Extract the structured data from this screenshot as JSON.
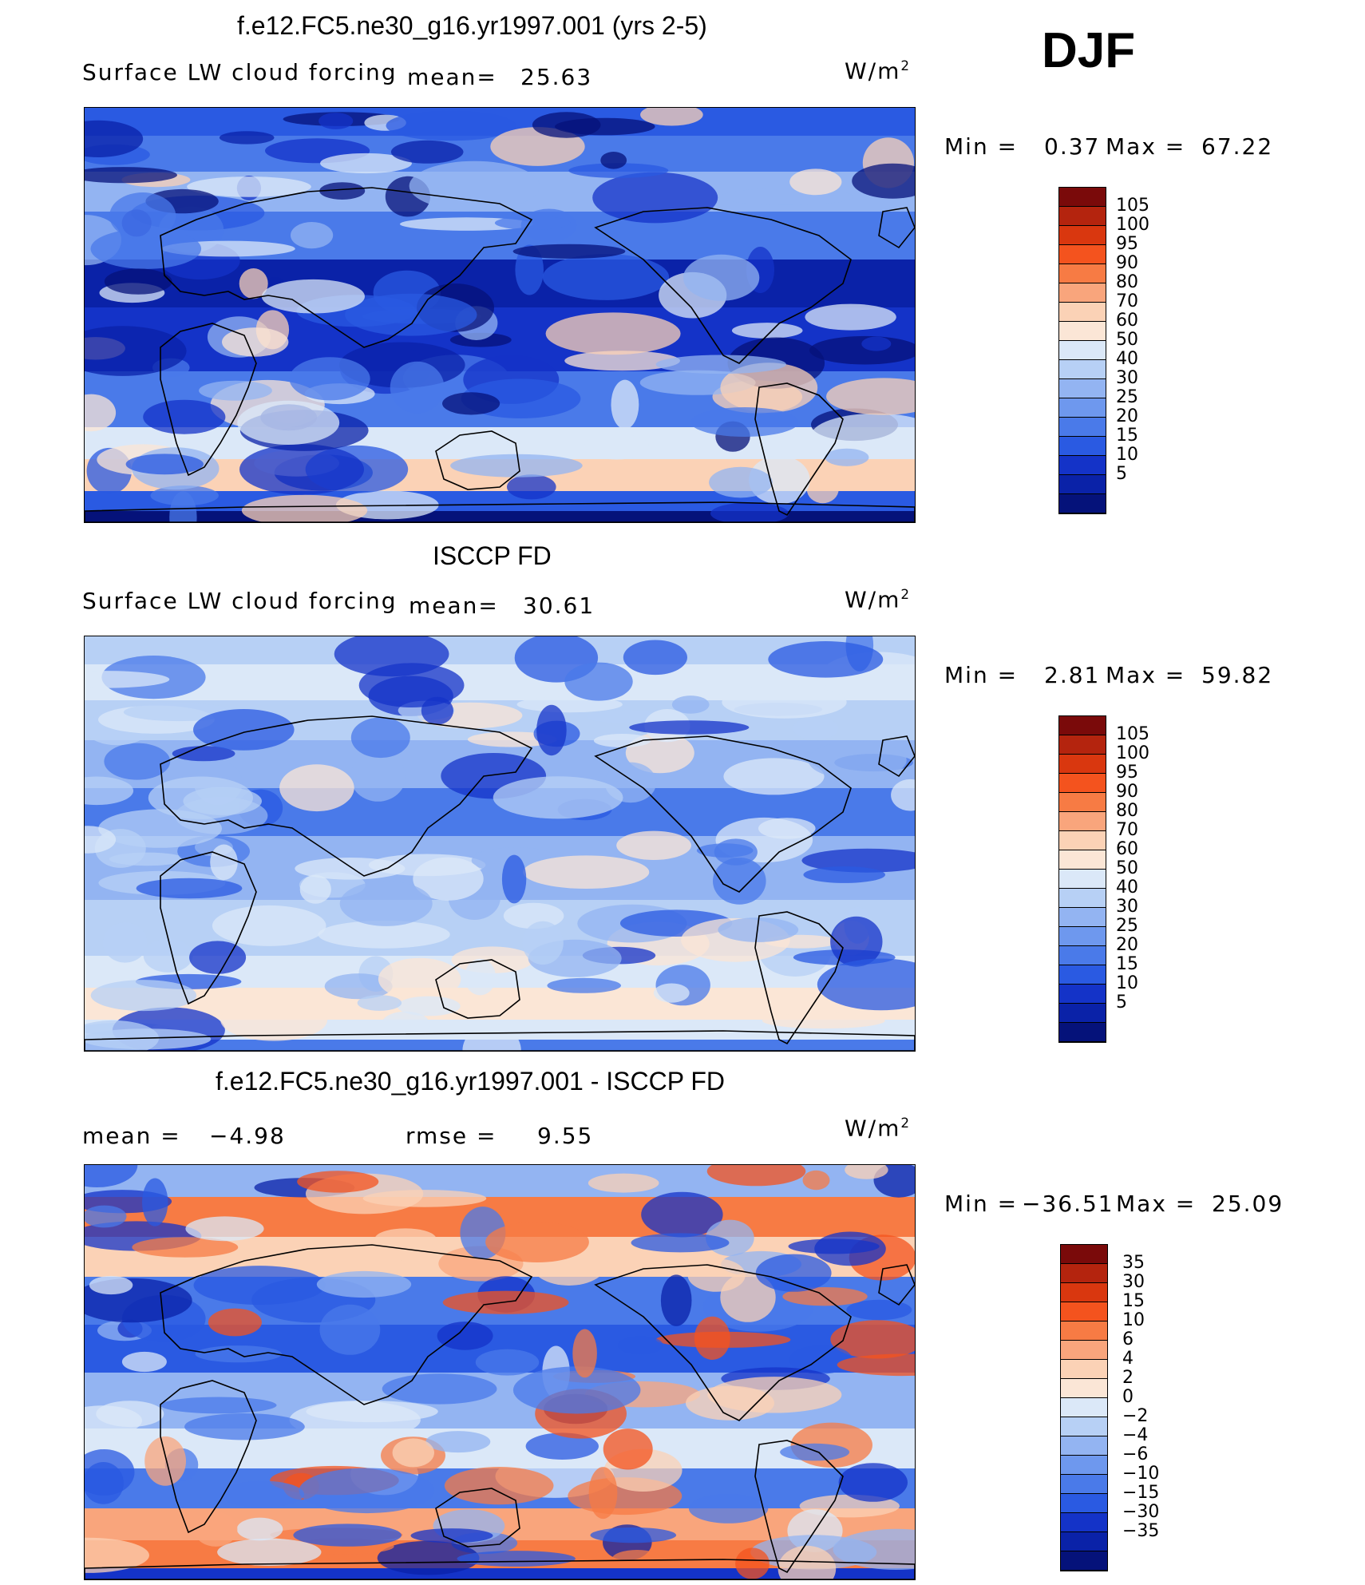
{
  "season": "DJF",
  "panels": [
    {
      "title": "f.e12.FC5.ne30_g16.yr1997.001 (yrs 2-5)",
      "left_label": "Surface LW cloud forcing",
      "mean_label": "mean=",
      "mean_value": "25.63",
      "units": "W/m",
      "units_sup": "2",
      "min_label": "Min =",
      "min_value": "0.37",
      "max_label": "Max =",
      "max_value": "67.22",
      "colorbar": {
        "labels": [
          "105",
          "100",
          "95",
          "90",
          "80",
          "70",
          "60",
          "50",
          "40",
          "30",
          "25",
          "20",
          "15",
          "10",
          "5"
        ],
        "colors": [
          "#7a0a0a",
          "#b4240e",
          "#d9370f",
          "#f4531e",
          "#f77b44",
          "#f9a57c",
          "#fbd2b6",
          "#fbe6d6",
          "#dbe8f8",
          "#b7d0f5",
          "#93b4f2",
          "#6e98ee",
          "#4a7ae9",
          "#2a5ae2",
          "#1433c8",
          "#0a22a8",
          "#05127a"
        ]
      },
      "map_palette": [
        "#05127a",
        "#0a22a8",
        "#1433c8",
        "#2a5ae2",
        "#4a7ae9",
        "#93b4f2",
        "#dbe8f8",
        "#fbe6d6",
        "#fbd2b6"
      ]
    },
    {
      "title": "ISCCP FD",
      "left_label": "Surface LW cloud forcing",
      "mean_label": "mean=",
      "mean_value": "30.61",
      "units": "W/m",
      "units_sup": "2",
      "min_label": "Min =",
      "min_value": "2.81",
      "max_label": "Max =",
      "max_value": "59.82",
      "colorbar": {
        "labels": [
          "105",
          "100",
          "95",
          "90",
          "80",
          "70",
          "60",
          "50",
          "40",
          "30",
          "25",
          "20",
          "15",
          "10",
          "5"
        ],
        "colors": [
          "#7a0a0a",
          "#b4240e",
          "#d9370f",
          "#f4531e",
          "#f77b44",
          "#f9a57c",
          "#fbd2b6",
          "#fbe6d6",
          "#dbe8f8",
          "#b7d0f5",
          "#93b4f2",
          "#6e98ee",
          "#4a7ae9",
          "#2a5ae2",
          "#1433c8",
          "#0a22a8",
          "#05127a"
        ]
      },
      "map_palette": [
        "#1433c8",
        "#2a5ae2",
        "#4a7ae9",
        "#93b4f2",
        "#b7d0f5",
        "#dbe8f8",
        "#fbe6d6"
      ]
    },
    {
      "title": "f.e12.FC5.ne30_g16.yr1997.001 - ISCCP FD",
      "left_label": "mean =",
      "mean_label": "",
      "mean_value": "−4.98",
      "rmse_label": "rmse =",
      "rmse_value": "9.55",
      "units": "W/m",
      "units_sup": "2",
      "min_label": "Min =",
      "min_value": "−36.51",
      "max_label": "Max =",
      "max_value": "25.09",
      "colorbar": {
        "labels": [
          "35",
          "30",
          "15",
          "10",
          "6",
          "4",
          "2",
          "0",
          "−2",
          "−4",
          "−6",
          "−10",
          "−15",
          "−30",
          "−35"
        ],
        "colors": [
          "#7a0a0a",
          "#b4240e",
          "#d9370f",
          "#f4531e",
          "#f77b44",
          "#f9a57c",
          "#fbd2b6",
          "#fbe6d6",
          "#dbe8f8",
          "#b7d0f5",
          "#93b4f2",
          "#6e98ee",
          "#4a7ae9",
          "#2a5ae2",
          "#1433c8",
          "#0a22a8",
          "#05127a"
        ]
      },
      "map_palette": [
        "#0a22a8",
        "#1433c8",
        "#2a5ae2",
        "#4a7ae9",
        "#93b4f2",
        "#dbe8f8",
        "#fbd2b6",
        "#f9a57c",
        "#f77b44",
        "#f4531e"
      ]
    }
  ]
}
